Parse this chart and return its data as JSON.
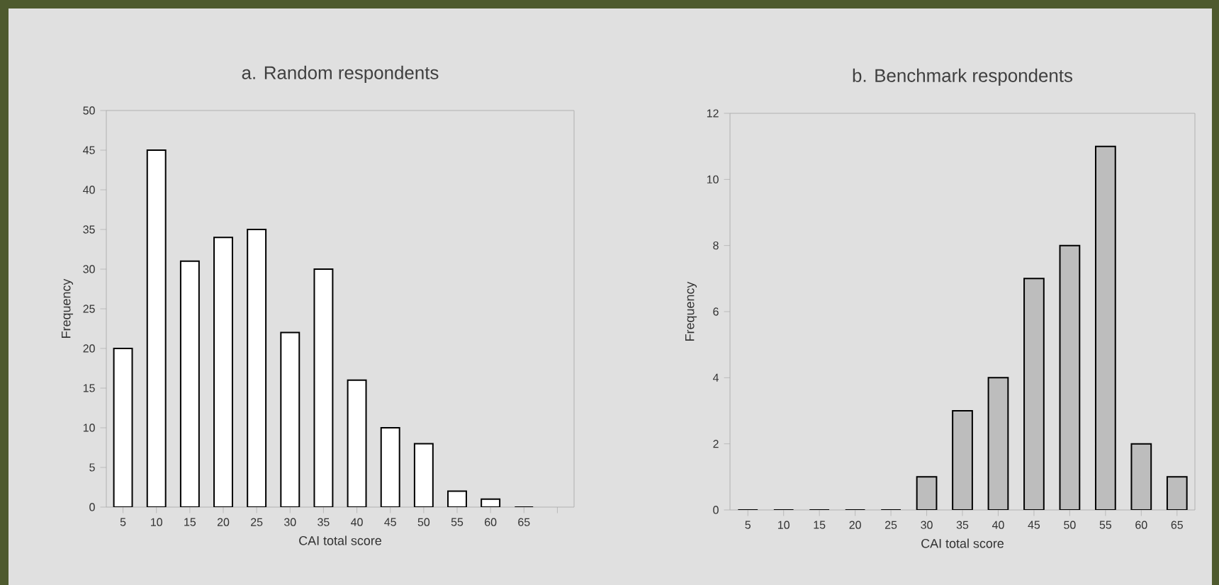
{
  "chart_data": [
    {
      "type": "bar",
      "title": "a. Random respondents",
      "xlabel": "CAI total score",
      "ylabel": "Frequency",
      "categories": [
        "5",
        "10",
        "15",
        "20",
        "25",
        "30",
        "35",
        "40",
        "45",
        "50",
        "55",
        "60",
        "65",
        null
      ],
      "values": [
        20,
        45,
        31,
        34,
        35,
        22,
        30,
        16,
        10,
        8,
        2,
        1,
        0,
        null
      ],
      "color": "#ffffff",
      "ylim": [
        0,
        50
      ],
      "yticks": [
        0,
        5,
        10,
        15,
        20,
        25,
        30,
        35,
        40,
        45,
        50
      ]
    },
    {
      "type": "bar",
      "title": "b. Benchmark respondents",
      "xlabel": "CAI total score",
      "ylabel": "Frequency",
      "categories": [
        "5",
        "10",
        "15",
        "20",
        "25",
        "30",
        "35",
        "40",
        "45",
        "50",
        "55",
        "60",
        "65"
      ],
      "values": [
        0,
        0,
        0,
        0,
        0,
        1,
        3,
        4,
        7,
        8,
        11,
        2,
        1
      ],
      "color": "#bdbdbd",
      "ylim": [
        0,
        12
      ],
      "yticks": [
        0,
        2,
        4,
        6,
        8,
        10,
        12
      ]
    }
  ]
}
